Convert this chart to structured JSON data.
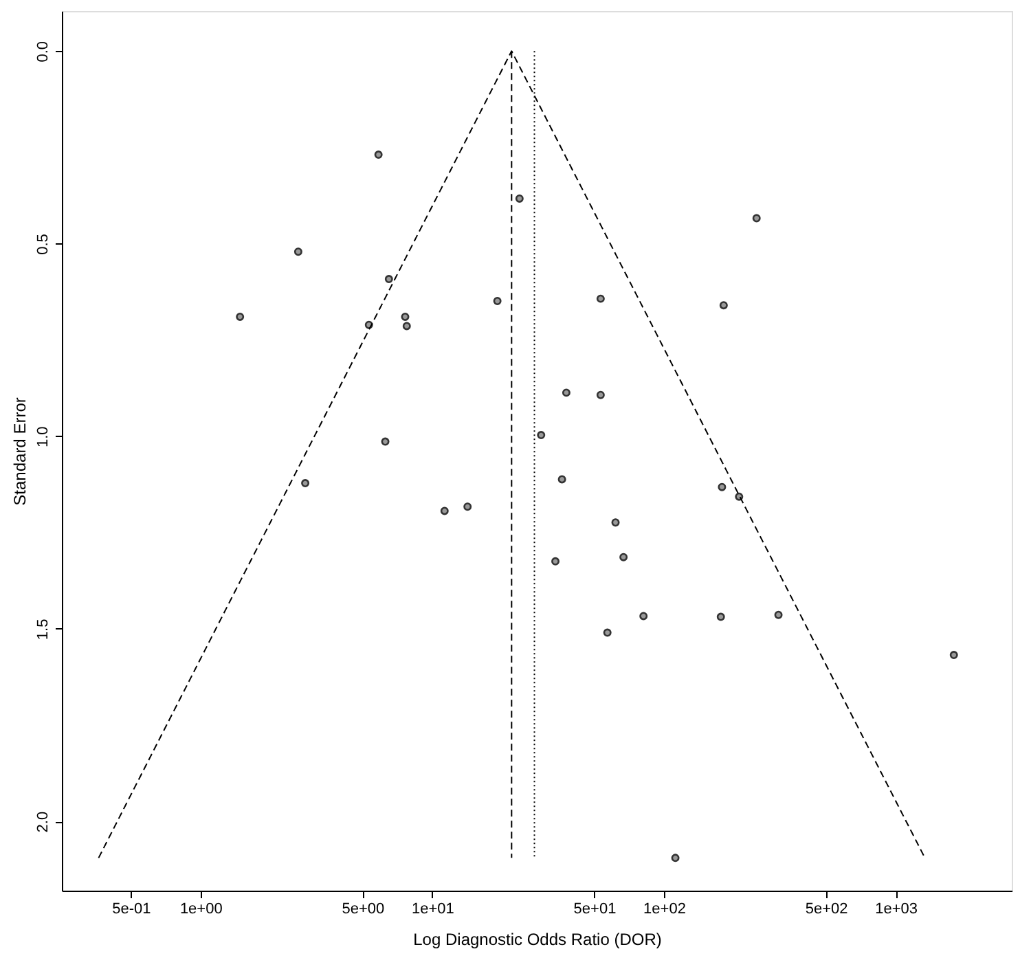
{
  "chart_data": {
    "type": "scatter",
    "xlabel": "Log Diagnostic Odds Ratio (DOR)",
    "ylabel": "Standard Error",
    "log": "x",
    "grid": false,
    "xlim": [
      0.252,
      3170
    ],
    "ylim": [
      2.18,
      -0.104
    ],
    "xticks": [
      {
        "value": 0.5,
        "label": "5e-01"
      },
      {
        "value": 1,
        "label": "1e+00"
      },
      {
        "value": 5,
        "label": "5e+00"
      },
      {
        "value": 10,
        "label": "1e+01"
      },
      {
        "value": 50,
        "label": "5e+01"
      },
      {
        "value": 100,
        "label": "1e+02"
      },
      {
        "value": 500,
        "label": "5e+02"
      },
      {
        "value": 1000,
        "label": "1e+03"
      }
    ],
    "yticks": [
      {
        "value": 0,
        "label": "0.0"
      },
      {
        "value": 0.5,
        "label": "0.5"
      },
      {
        "value": 1,
        "label": "1.0"
      },
      {
        "value": 1.5,
        "label": "1.5"
      },
      {
        "value": 2,
        "label": "2.0"
      }
    ],
    "series": [
      {
        "marker": "circle",
        "color": "#333333",
        "x": [
          5.86,
          23.8,
          2.64,
          6.5,
          1.48,
          7.64,
          5.33,
          7.76,
          19.1,
          251,
          53.3,
          181,
          6.27,
          2.83,
          11.3,
          14.2,
          37.9,
          53.3,
          29.5,
          36.3,
          178,
          211,
          61.8,
          66.9,
          34.0,
          57.0,
          81.6,
          176,
          312,
          1783,
          112
        ],
        "values": [
          0.269,
          0.383,
          0.521,
          0.592,
          0.69,
          0.69,
          0.711,
          0.714,
          0.649,
          0.434,
          0.643,
          0.66,
          1.014,
          1.122,
          1.194,
          1.183,
          0.887,
          0.893,
          0.997,
          1.112,
          1.132,
          1.157,
          1.224,
          1.314,
          1.325,
          1.51,
          1.467,
          1.469,
          1.464,
          1.568,
          2.095
        ]
      },
      {
        "type": "line",
        "color": "#000000",
        "line_style": "dashed",
        "x": [
          0.363,
          22.0,
          1337
        ],
        "values": [
          2.095,
          0,
          2.095
        ]
      },
      {
        "type": "line",
        "color": "#000000",
        "line_style": "dashed",
        "x": [
          22.0,
          22.0
        ],
        "values": [
          0,
          2.095
        ]
      },
      {
        "type": "line",
        "color": "#000000",
        "line_style": "dotted",
        "x": [
          27.6,
          27.6
        ],
        "values": [
          0,
          2.095
        ]
      }
    ]
  }
}
